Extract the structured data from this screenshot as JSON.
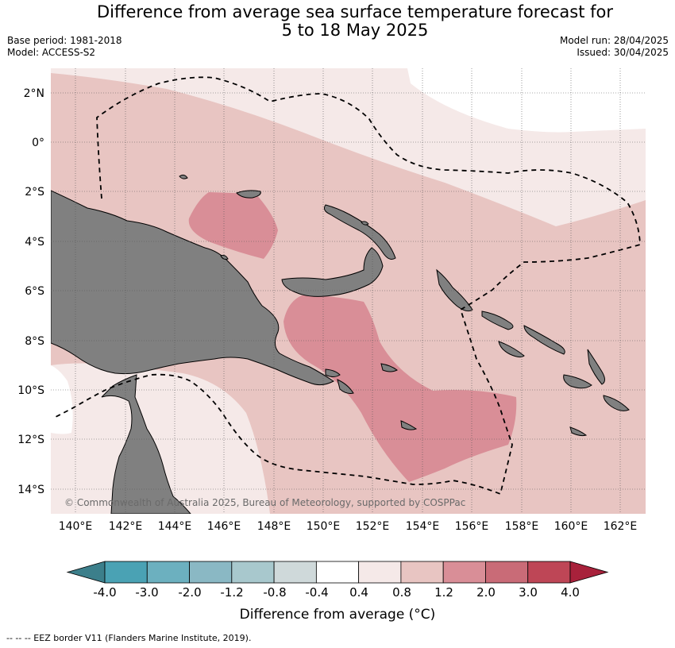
{
  "header": {
    "title_line1": "Difference from average sea surface temperature forecast for",
    "title_line2": "5 to 18 May 2025",
    "base_period": "Base period: 1981-2018",
    "model": "Model: ACCESS-S2",
    "model_run": "Model run: 28/04/2025",
    "issued": "Issued: 30/04/2025"
  },
  "map": {
    "lat_labels": [
      "2°N",
      "0°",
      "2°S",
      "4°S",
      "6°S",
      "8°S",
      "10°S",
      "12°S",
      "14°S"
    ],
    "lon_labels": [
      "140°E",
      "142°E",
      "144°E",
      "146°E",
      "148°E",
      "150°E",
      "152°E",
      "154°E",
      "156°E",
      "158°E",
      "160°E",
      "162°E"
    ],
    "copyright": "© Commonwealth of Australia 2025, Bureau of Meteorology, supported by COSPPac",
    "land_color": "#808080",
    "warm_anomaly_regions": [
      {
        "label": "0.4 to 0.8 °C",
        "color": "#f5e9e8"
      },
      {
        "label": "0.8 to 1.2 °C",
        "color": "#e8c5c2"
      },
      {
        "label": "1.2 to 2.0 °C",
        "color": "#d98e97"
      }
    ]
  },
  "colorbar": {
    "title": "Difference from average (°C)",
    "ticks": [
      "-4.0",
      "-3.0",
      "-2.0",
      "-1.2",
      "-0.8",
      "-0.4",
      "0.4",
      "0.8",
      "1.2",
      "2.0",
      "3.0",
      "4.0"
    ],
    "colors": [
      "#3c7f8b",
      "#4aa2b4",
      "#6cb0bf",
      "#8ab8c4",
      "#a8c8cd",
      "#cfd9da",
      "#ffffff",
      "#f5e9e8",
      "#e8c5c2",
      "#d98e97",
      "#c96b77",
      "#be4656",
      "#a8213b"
    ]
  },
  "footer": {
    "legend": "--  --  -- EEZ border V11 (Flanders Marine Institute, 2019)."
  }
}
